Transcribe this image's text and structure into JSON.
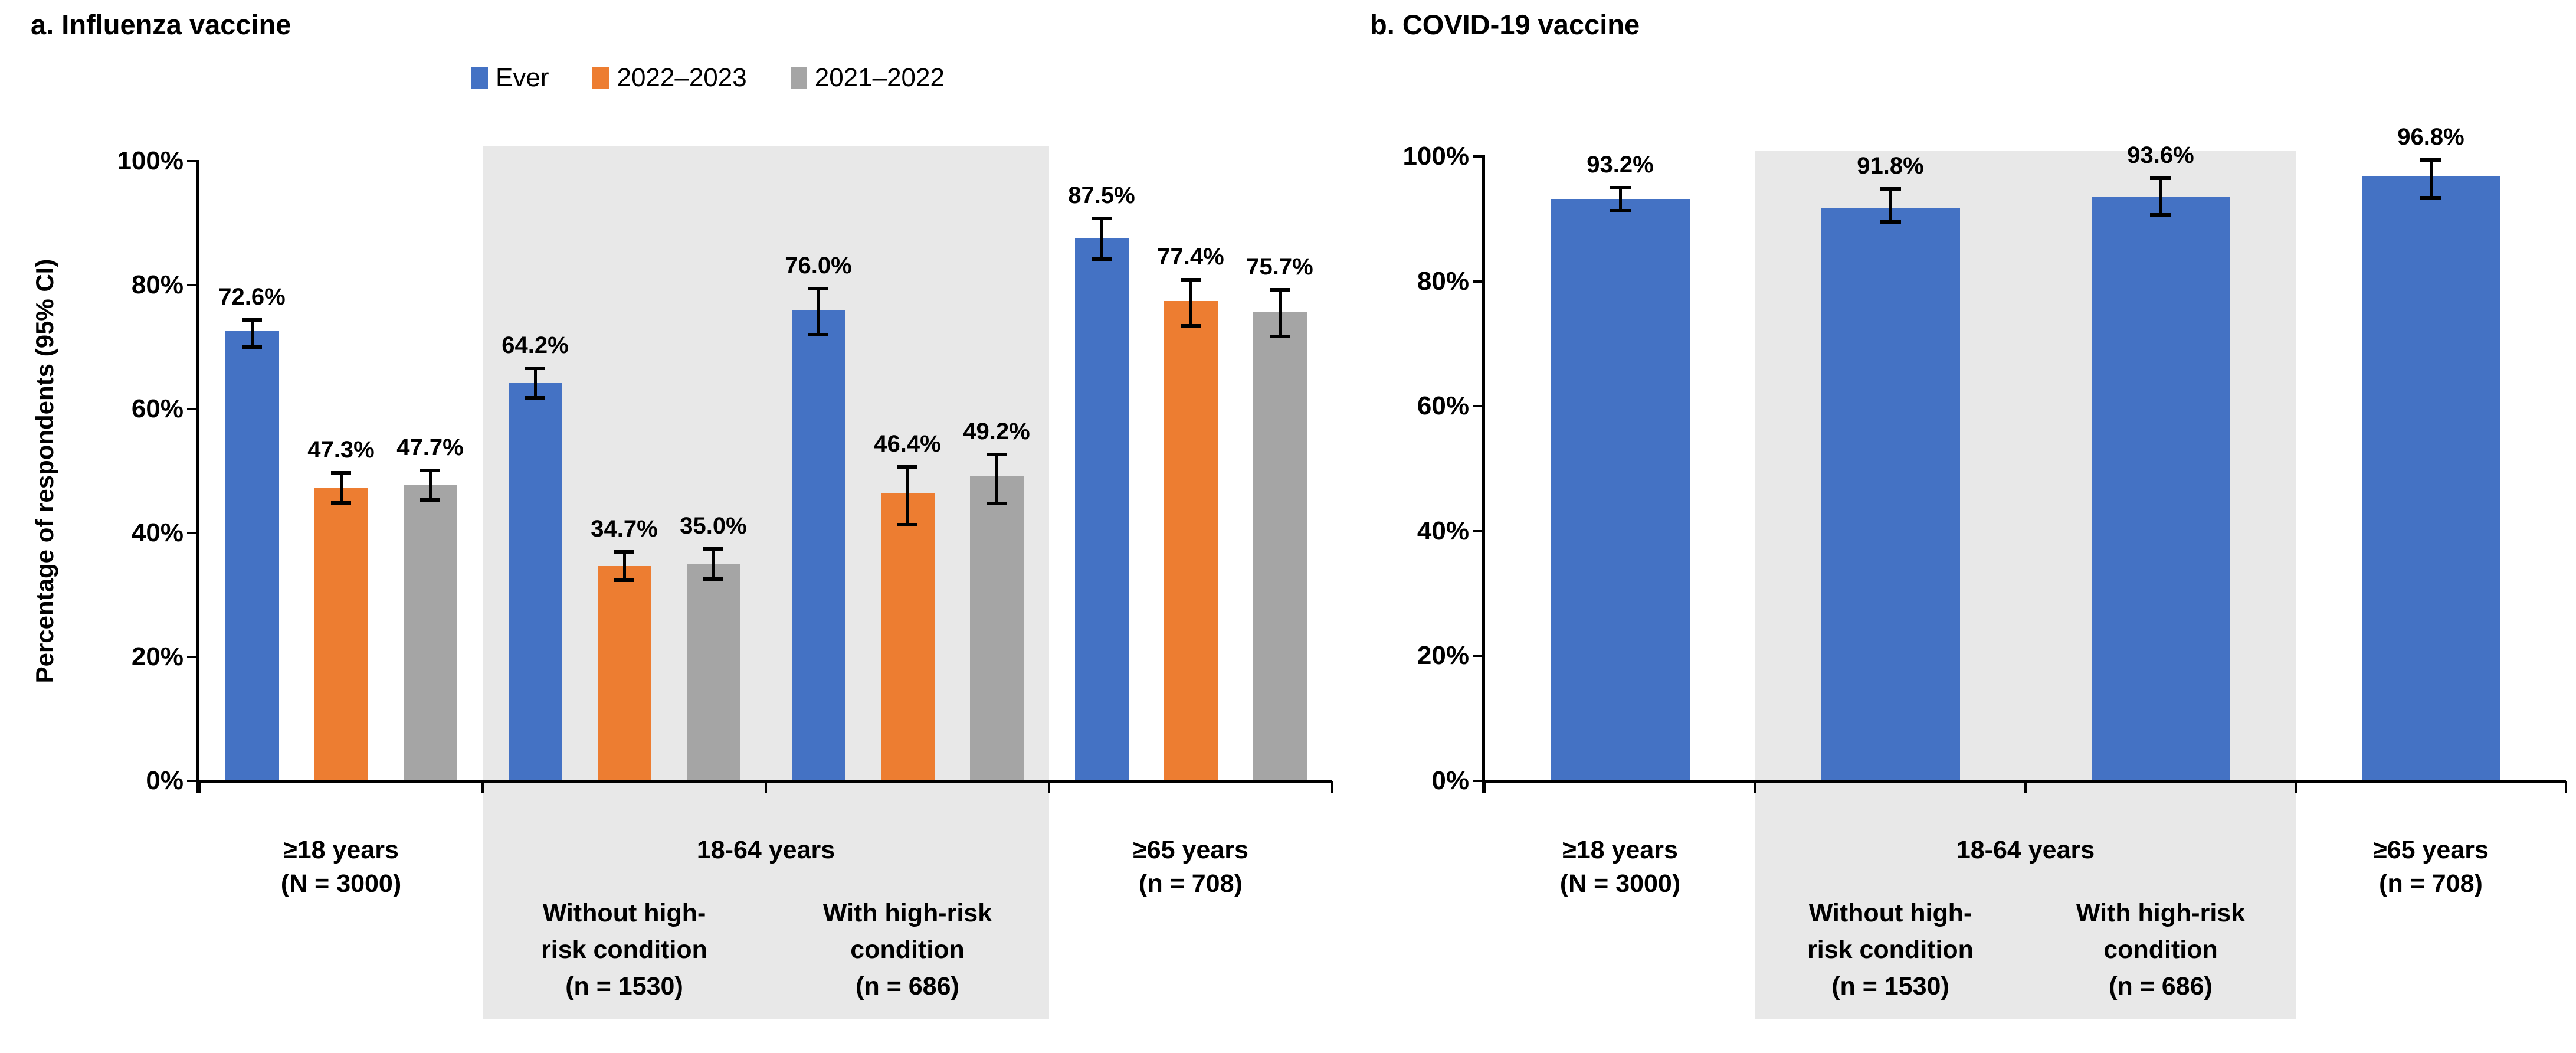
{
  "panels": [
    {
      "id": "a",
      "title": "a. Influenza vaccine",
      "y_axis_title": "Percentage of respondents (95% CI)",
      "legend": [
        {
          "label": "Ever",
          "color": "#4472C4"
        },
        {
          "label": "2022–2023",
          "color": "#ED7D31"
        },
        {
          "label": "2021–2022",
          "color": "#A5A5A5"
        }
      ]
    },
    {
      "id": "b",
      "title": "b. COVID-19 vaccine",
      "y_axis_title": "",
      "legend": []
    }
  ],
  "colors": {
    "blue": "#4472C4",
    "orange": "#ED7D31",
    "gray_bar": "#A5A5A5",
    "band_background": "#E8E8E8",
    "axis": "#000000"
  },
  "chart_data": [
    {
      "type": "bar",
      "panel": "a",
      "title": "a. Influenza vaccine",
      "xlabel": "",
      "ylabel": "Percentage of respondents (95% CI)",
      "ylim": [
        0,
        100
      ],
      "ytick_labels": [
        "0%",
        "20%",
        "40%",
        "60%",
        "80%",
        "100%"
      ],
      "grid": false,
      "legend_position": "top-center",
      "error_bars": true,
      "band": {
        "label": "18-64 years",
        "covers_groups": [
          1,
          2
        ],
        "color": "#E8E8E8"
      },
      "groups": [
        {
          "label_lines": [
            "≥18 years",
            "(N = 3000)"
          ],
          "in_band": false
        },
        {
          "label_lines": [
            "Without high-",
            "risk condition",
            "(n = 1530)"
          ],
          "in_band": true
        },
        {
          "label_lines": [
            "With high-risk",
            "condition",
            "(n = 686)"
          ],
          "in_band": true
        },
        {
          "label_lines": [
            "≥65 years",
            "(n = 708)"
          ],
          "in_band": false
        }
      ],
      "series": [
        {
          "name": "Ever",
          "color": "#4472C4",
          "values": [
            72.6,
            64.2,
            76.0,
            87.5
          ],
          "labels": [
            "72.6%",
            "64.2%",
            "76.0%",
            "87.5%"
          ],
          "ci_low": [
            70.0,
            61.8,
            72.0,
            84.2
          ],
          "ci_high": [
            74.4,
            66.6,
            79.4,
            90.8
          ]
        },
        {
          "name": "2022–2023",
          "color": "#ED7D31",
          "values": [
            47.3,
            34.7,
            46.4,
            77.4
          ],
          "labels": [
            "47.3%",
            "34.7%",
            "46.4%",
            "77.4%"
          ],
          "ci_low": [
            44.9,
            32.4,
            41.3,
            73.4
          ],
          "ci_high": [
            49.7,
            37.0,
            50.7,
            80.9
          ]
        },
        {
          "name": "2021–2022",
          "color": "#A5A5A5",
          "values": [
            47.7,
            35.0,
            49.2,
            75.7
          ],
          "labels": [
            "47.7%",
            "35.0%",
            "49.2%",
            "75.7%"
          ],
          "ci_low": [
            45.3,
            32.6,
            44.8,
            71.7
          ],
          "ci_high": [
            50.1,
            37.4,
            52.7,
            79.2
          ]
        }
      ]
    },
    {
      "type": "bar",
      "panel": "b",
      "title": "b. COVID-19 vaccine",
      "xlabel": "",
      "ylabel": "",
      "ylim": [
        0,
        100
      ],
      "ytick_labels": [
        "0%",
        "20%",
        "40%",
        "60%",
        "80%",
        "100%"
      ],
      "grid": false,
      "legend_position": "none",
      "error_bars": true,
      "band": {
        "label": "18-64 years",
        "covers_groups": [
          1,
          2
        ],
        "color": "#E8E8E8"
      },
      "groups": [
        {
          "label_lines": [
            "≥18 years",
            "(N = 3000)"
          ],
          "in_band": false
        },
        {
          "label_lines": [
            "Without high-",
            "risk condition",
            "(n = 1530)"
          ],
          "in_band": true
        },
        {
          "label_lines": [
            "With high-risk",
            "condition",
            "(n = 686)"
          ],
          "in_band": true
        },
        {
          "label_lines": [
            "≥65 years",
            "(n = 708)"
          ],
          "in_band": false
        }
      ],
      "series": [
        {
          "name": "Ever",
          "color": "#4472C4",
          "values": [
            93.2,
            91.8,
            93.6,
            96.8
          ],
          "labels": [
            "93.2%",
            "91.8%",
            "93.6%",
            "96.8%"
          ],
          "ci_low": [
            91.3,
            89.5,
            90.6,
            93.4
          ],
          "ci_high": [
            95.0,
            94.8,
            96.5,
            99.4
          ]
        }
      ]
    }
  ]
}
